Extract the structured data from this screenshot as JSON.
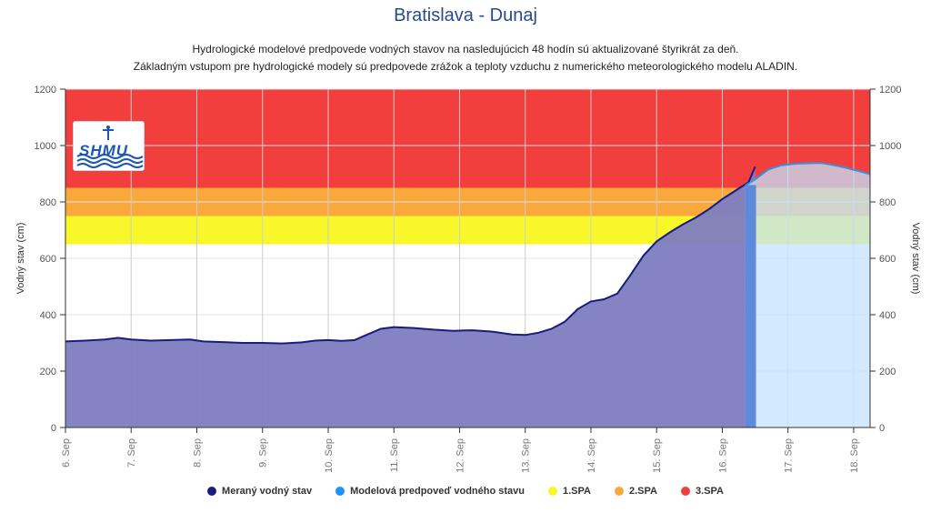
{
  "header": {
    "title": "Bratislava - Dunaj",
    "subtitle_line1": "Hydrologické modelové predpovede vodných stavov na nasledujúcich 48 hodín sú aktualizované štyrikrát za deň.",
    "subtitle_line2": "Základným vstupom pre hydrologické modely sú predpovede zrážok a teploty vzduchu z numerického meteorologického modelu ALADIN."
  },
  "logo": {
    "text": "SHMU",
    "icon": "shmu-logo-icon"
  },
  "chart_data": {
    "type": "area",
    "ylabel_left": "Vodný stav (cm)",
    "ylabel_right": "Vodný stav (cm)",
    "ylim": [
      0,
      1200
    ],
    "y_ticks": [
      0,
      200,
      400,
      600,
      800,
      1000,
      1200
    ],
    "xlim_days": [
      6,
      18.25
    ],
    "x_ticks": [
      {
        "day": 6,
        "label": "6. Sep"
      },
      {
        "day": 7,
        "label": "7. Sep"
      },
      {
        "day": 8,
        "label": "8. Sep"
      },
      {
        "day": 9,
        "label": "9. Sep"
      },
      {
        "day": 10,
        "label": "10. Sep"
      },
      {
        "day": 11,
        "label": "11. Sep"
      },
      {
        "day": 12,
        "label": "12. Sep"
      },
      {
        "day": 13,
        "label": "13. Sep"
      },
      {
        "day": 14,
        "label": "14. Sep"
      },
      {
        "day": 15,
        "label": "15. Sep"
      },
      {
        "day": 16,
        "label": "16. Sep"
      },
      {
        "day": 17,
        "label": "17. Sep"
      },
      {
        "day": 18,
        "label": "18. Sep"
      }
    ],
    "bands": [
      {
        "name": "1.SPA",
        "from": 650,
        "to": 750,
        "color": "#f7f72a"
      },
      {
        "name": "2.SPA",
        "from": 750,
        "to": 850,
        "color": "#f9a83c"
      },
      {
        "name": "3.SPA",
        "from": 850,
        "to": 1200,
        "color": "#f33e3e"
      }
    ],
    "series": [
      {
        "name": "Meraný vodný stav",
        "color": "#1a1a80",
        "fill": "#7d7dc0",
        "points": [
          [
            6.0,
            305
          ],
          [
            6.3,
            308
          ],
          [
            6.6,
            312
          ],
          [
            6.8,
            318
          ],
          [
            7.0,
            312
          ],
          [
            7.3,
            308
          ],
          [
            7.6,
            310
          ],
          [
            7.9,
            312
          ],
          [
            8.1,
            305
          ],
          [
            8.4,
            303
          ],
          [
            8.7,
            300
          ],
          [
            9.0,
            300
          ],
          [
            9.3,
            298
          ],
          [
            9.6,
            302
          ],
          [
            9.8,
            308
          ],
          [
            10.0,
            310
          ],
          [
            10.2,
            307
          ],
          [
            10.4,
            310
          ],
          [
            10.6,
            330
          ],
          [
            10.8,
            350
          ],
          [
            11.0,
            356
          ],
          [
            11.3,
            353
          ],
          [
            11.6,
            347
          ],
          [
            11.9,
            343
          ],
          [
            12.2,
            345
          ],
          [
            12.5,
            340
          ],
          [
            12.8,
            330
          ],
          [
            13.0,
            328
          ],
          [
            13.2,
            336
          ],
          [
            13.4,
            350
          ],
          [
            13.6,
            375
          ],
          [
            13.8,
            420
          ],
          [
            14.0,
            447
          ],
          [
            14.2,
            455
          ],
          [
            14.4,
            475
          ],
          [
            14.6,
            540
          ],
          [
            14.8,
            610
          ],
          [
            15.0,
            660
          ],
          [
            15.2,
            692
          ],
          [
            15.4,
            720
          ],
          [
            15.6,
            745
          ],
          [
            15.8,
            775
          ],
          [
            16.0,
            810
          ],
          [
            16.2,
            840
          ],
          [
            16.4,
            870
          ],
          [
            16.5,
            925
          ]
        ]
      },
      {
        "name": "Modelová predpoveď vodného stavu",
        "color": "#3b8fe0",
        "fill": "#c3e3fb",
        "points": [
          [
            16.35,
            858
          ],
          [
            16.5,
            880
          ],
          [
            16.7,
            915
          ],
          [
            16.9,
            930
          ],
          [
            17.1,
            935
          ],
          [
            17.3,
            937
          ],
          [
            17.5,
            938
          ],
          [
            17.7,
            930
          ],
          [
            17.9,
            920
          ],
          [
            18.1,
            908
          ],
          [
            18.25,
            898
          ]
        ]
      }
    ],
    "legend": [
      {
        "label": "Meraný vodný stav",
        "color": "#1a1a80"
      },
      {
        "label": "Modelová predpoveď vodného stavu",
        "color": "#1e90ff"
      },
      {
        "label": "1.SPA",
        "color": "#f7f72a"
      },
      {
        "label": "2.SPA",
        "color": "#f9a83c"
      },
      {
        "label": "3.SPA",
        "color": "#f33e3e"
      }
    ],
    "legend_position": "bottom-center"
  }
}
